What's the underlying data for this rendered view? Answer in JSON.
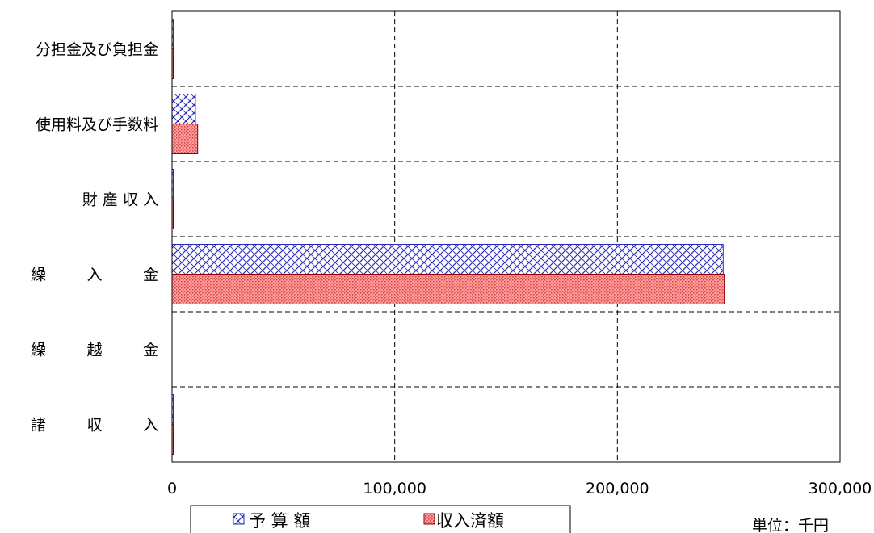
{
  "chart_data": {
    "type": "bar",
    "orientation": "horizontal",
    "categories": [
      "分担金及び負担金",
      "使用料及び手数料",
      "財 産 収 入",
      "繰　入　金",
      "繰　越　金",
      "諸　収　入"
    ],
    "series": [
      {
        "name": "予 算 額",
        "values": [
          500,
          10500,
          500,
          247500,
          0,
          100
        ],
        "color": "#3a3ab0",
        "pattern": "crosshatch-blue"
      },
      {
        "name": "収入済額",
        "values": [
          500,
          11500,
          500,
          248000,
          0,
          100
        ],
        "color": "#ff8080",
        "pattern": "dotted-red"
      }
    ],
    "xlim": [
      0,
      300000
    ],
    "xticks": [
      0,
      100000,
      200000,
      300000
    ],
    "tick_labels": [
      "0",
      "100,000",
      "200,000",
      "300,000"
    ],
    "grid": true,
    "legend": "bottom",
    "unit_label": "単位：千円"
  }
}
